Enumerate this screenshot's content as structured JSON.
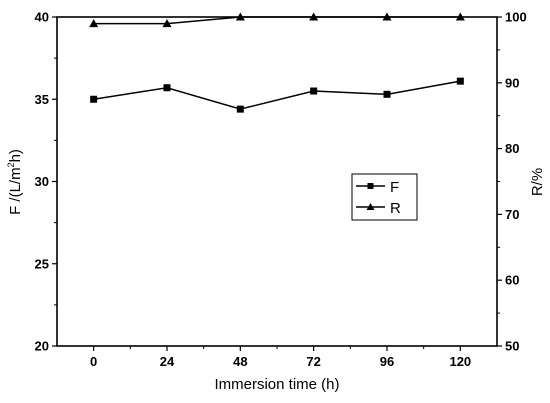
{
  "chart_data": {
    "type": "line",
    "x": [
      0,
      24,
      48,
      72,
      96,
      120
    ],
    "xlabel": "Immersion time (h)",
    "xticks": [
      "0",
      "24",
      "48",
      "72",
      "96",
      "120"
    ],
    "xlim": [
      -12,
      132
    ],
    "ylabel_left": "F /(L/m²h)",
    "ylabel_left_parts": {
      "prefix": "F /(L/m",
      "sup": "2",
      "suffix": "h)"
    },
    "ylim_left": [
      20,
      40
    ],
    "yticks_left": [
      "20",
      "25",
      "30",
      "35",
      "40"
    ],
    "ylabel_right": "R/%",
    "ylim_right": [
      50,
      100
    ],
    "yticks_right": [
      "50",
      "60",
      "70",
      "80",
      "90",
      "100"
    ],
    "series": [
      {
        "name": "F",
        "axis": "left",
        "marker": "square",
        "values": [
          35.0,
          35.7,
          34.4,
          35.5,
          35.3,
          36.1
        ]
      },
      {
        "name": "R",
        "axis": "right",
        "marker": "triangle",
        "values": [
          99.0,
          99.0,
          100.0,
          100.0,
          100.0,
          100.0
        ]
      }
    ],
    "legend": {
      "placement": "center-right",
      "entries": [
        "F",
        "R"
      ]
    },
    "grid": false
  }
}
